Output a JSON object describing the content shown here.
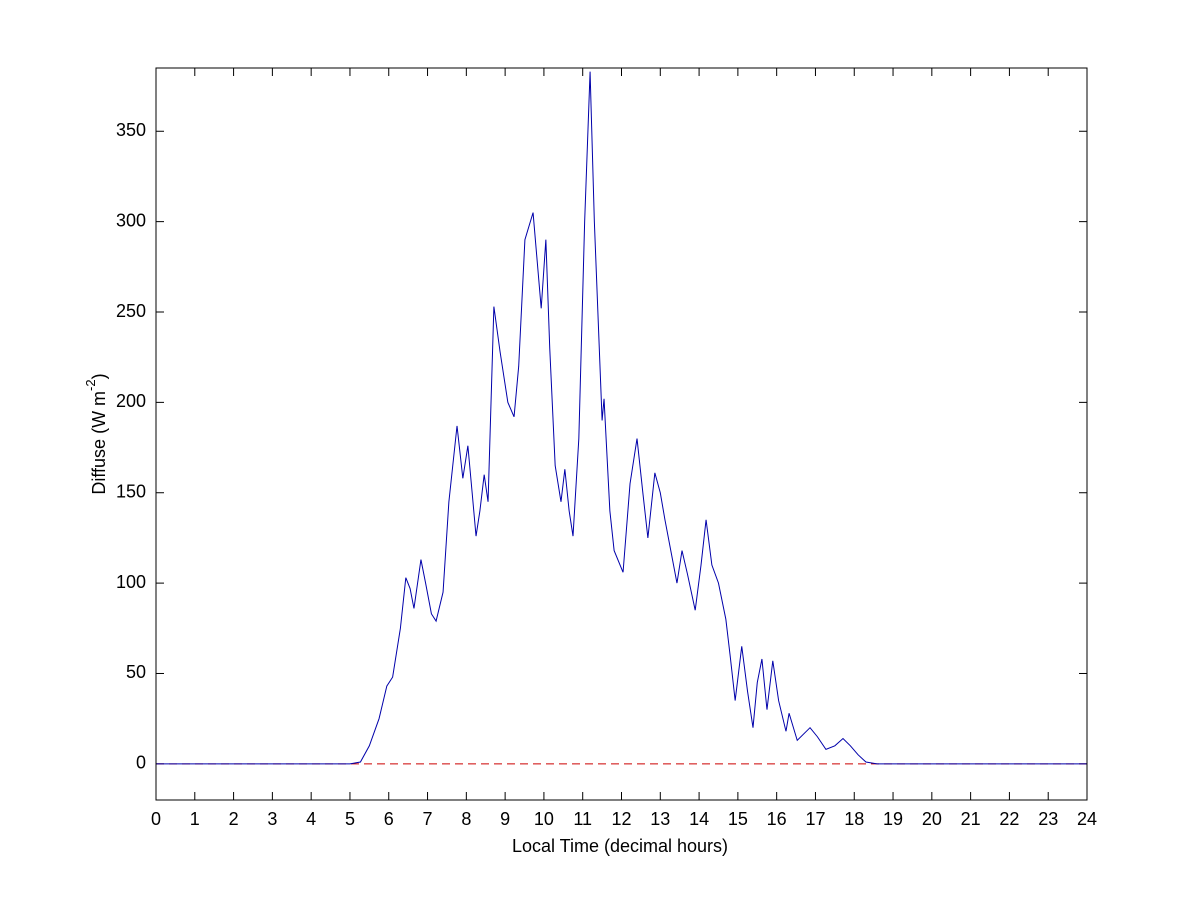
{
  "chart_data": {
    "type": "line",
    "xlabel": "Local Time (decimal hours)",
    "ylabel_parts": [
      "Diffuse (W m",
      "-2",
      ")"
    ],
    "xlim": [
      0,
      24
    ],
    "ylim": [
      -20,
      385
    ],
    "xticks": [
      0,
      1,
      2,
      3,
      4,
      5,
      6,
      7,
      8,
      9,
      10,
      11,
      12,
      13,
      14,
      15,
      16,
      17,
      18,
      19,
      20,
      21,
      22,
      23,
      24
    ],
    "yticks": [
      0,
      50,
      100,
      150,
      200,
      250,
      300,
      350
    ],
    "grid": false,
    "series": [
      {
        "color": "#0000aa",
        "dash": false,
        "x": [
          0,
          1,
          2,
          3,
          4,
          5,
          5.27,
          5.5,
          5.75,
          5.95,
          6.1,
          6.3,
          6.44,
          6.55,
          6.65,
          6.83,
          6.95,
          7.1,
          7.22,
          7.4,
          7.55,
          7.76,
          7.91,
          8.04,
          8.15,
          8.25,
          8.35,
          8.46,
          8.56,
          8.71,
          8.87,
          9.07,
          9.23,
          9.35,
          9.51,
          9.72,
          9.93,
          10.05,
          10.15,
          10.29,
          10.44,
          10.54,
          10.65,
          10.75,
          10.9,
          11.05,
          11.19,
          11.3,
          11.5,
          11.55,
          11.7,
          11.81,
          12.04,
          12.22,
          12.4,
          12.55,
          12.68,
          12.86,
          13.0,
          13.12,
          13.43,
          13.56,
          13.7,
          13.9,
          14.05,
          14.18,
          14.33,
          14.5,
          14.69,
          14.8,
          14.93,
          15.1,
          15.25,
          15.39,
          15.5,
          15.62,
          15.75,
          15.9,
          16.05,
          16.24,
          16.32,
          16.53,
          16.86,
          17.05,
          17.27,
          17.5,
          17.71,
          17.9,
          18.1,
          18.3,
          18.59,
          19,
          20,
          21,
          22,
          23,
          24
        ],
        "values": [
          0,
          0,
          0,
          0,
          0,
          0,
          1,
          10,
          25,
          43,
          48,
          75,
          103,
          97,
          86,
          113,
          100,
          83,
          79,
          95,
          145,
          187,
          158,
          176,
          150,
          126,
          140,
          160,
          145,
          253,
          228,
          200,
          192,
          220,
          290,
          305,
          252,
          290,
          230,
          165,
          145,
          163,
          140,
          126,
          180,
          300,
          383,
          300,
          190,
          202,
          140,
          118,
          106,
          155,
          180,
          150,
          125,
          161,
          150,
          135,
          100,
          118,
          105,
          85,
          110,
          135,
          110,
          100,
          80,
          60,
          35,
          65,
          40,
          20,
          45,
          58,
          30,
          57,
          35,
          18,
          28,
          13,
          20,
          15,
          8,
          10,
          14,
          10,
          5,
          1,
          0,
          0,
          0,
          0,
          0,
          0,
          0
        ]
      },
      {
        "color": "#cc0000",
        "dash": true,
        "x": [
          0,
          24
        ],
        "values": [
          0,
          0
        ]
      }
    ]
  }
}
